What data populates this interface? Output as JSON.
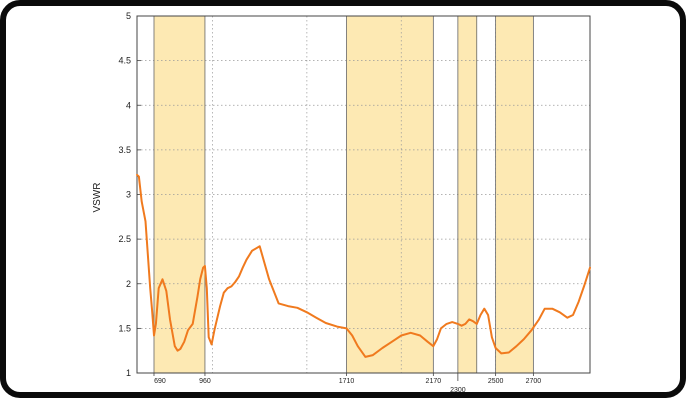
{
  "chart_data": {
    "type": "line",
    "title": "",
    "xlabel": "",
    "ylabel": "VSWR",
    "xlim": [
      600,
      3000
    ],
    "ylim": [
      1,
      5
    ],
    "yticks": [
      "1",
      "1.5",
      "2",
      "2.5",
      "3",
      "3.5",
      "4",
      "4.5",
      "5"
    ],
    "xticks": [
      {
        "value": 690,
        "label": "690"
      },
      {
        "value": 960,
        "label": "960"
      },
      {
        "value": 1710,
        "label": "1710"
      },
      {
        "value": 2170,
        "label": "2170"
      },
      {
        "value": 2300,
        "label": "2300"
      },
      {
        "value": 2500,
        "label": "2500"
      },
      {
        "value": 2700,
        "label": "2700"
      }
    ],
    "grid": true,
    "bands": [
      [
        690,
        960
      ],
      [
        1710,
        2170
      ],
      [
        2300,
        2400
      ],
      [
        2500,
        2700
      ]
    ],
    "band_color": "#fde9b3",
    "line_color": "#f07a1e",
    "series": [
      {
        "x": [
          600,
          610,
          625,
          645,
          670,
          680,
          690,
          700,
          715,
          735,
          755,
          775,
          800,
          815,
          830,
          850,
          870,
          895,
          920,
          935,
          950,
          960,
          970,
          980,
          995,
          1010,
          1040,
          1060,
          1080,
          1100,
          1120,
          1140,
          1160,
          1180,
          1210,
          1250,
          1300,
          1350,
          1400,
          1450,
          1500,
          1550,
          1600,
          1660,
          1710,
          1740,
          1770,
          1810,
          1850,
          1900,
          1950,
          2000,
          2050,
          2100,
          2140,
          2170,
          2190,
          2210,
          2240,
          2270,
          2300,
          2320,
          2340,
          2360,
          2380,
          2400,
          2420,
          2440,
          2460,
          2480,
          2500,
          2530,
          2570,
          2610,
          2650,
          2690,
          2730,
          2760,
          2800,
          2840,
          2880,
          2910,
          2940,
          2970,
          3000
        ],
        "y": [
          3.22,
          3.2,
          2.92,
          2.7,
          1.95,
          1.7,
          1.42,
          1.55,
          1.95,
          2.05,
          1.92,
          1.6,
          1.3,
          1.25,
          1.27,
          1.35,
          1.48,
          1.55,
          1.85,
          2.05,
          2.18,
          2.2,
          1.95,
          1.4,
          1.32,
          1.48,
          1.75,
          1.9,
          1.95,
          1.97,
          2.02,
          2.08,
          2.18,
          2.27,
          2.37,
          2.42,
          2.05,
          1.78,
          1.75,
          1.73,
          1.68,
          1.62,
          1.56,
          1.52,
          1.5,
          1.42,
          1.3,
          1.18,
          1.2,
          1.28,
          1.35,
          1.42,
          1.45,
          1.42,
          1.35,
          1.3,
          1.38,
          1.5,
          1.55,
          1.57,
          1.55,
          1.53,
          1.55,
          1.6,
          1.58,
          1.55,
          1.65,
          1.72,
          1.65,
          1.4,
          1.28,
          1.22,
          1.23,
          1.3,
          1.38,
          1.48,
          1.6,
          1.72,
          1.72,
          1.68,
          1.62,
          1.65,
          1.8,
          1.98,
          2.18
        ]
      }
    ]
  }
}
